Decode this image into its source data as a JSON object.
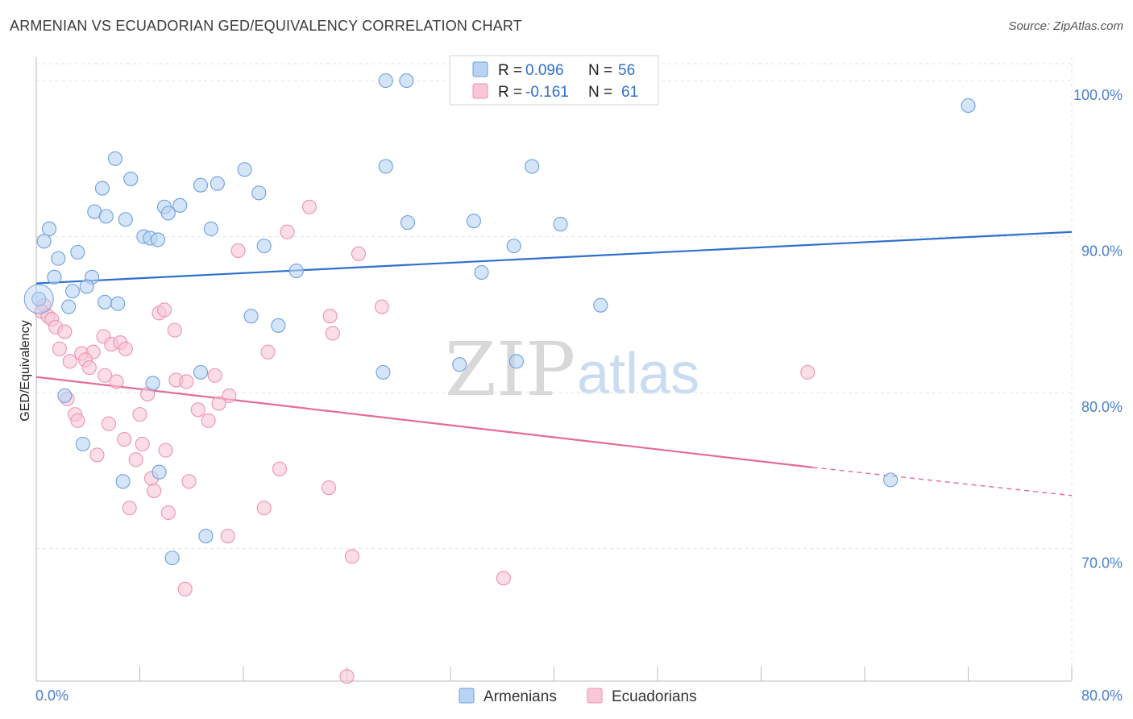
{
  "header": {
    "title": "ARMENIAN VS ECUADORIAN GED/EQUIVALENCY CORRELATION CHART",
    "source": "Source: ZipAtlas.com"
  },
  "watermark": {
    "zip": "ZIP",
    "atlas": "atlas"
  },
  "legend": {
    "armenians": {
      "r_label": "R =",
      "r_value": "0.096",
      "n_label": "N =",
      "n_value": "56"
    },
    "ecuadorians": {
      "r_label": "R =",
      "r_value": "-0.161",
      "n_label": "N =",
      "n_value": "61"
    }
  },
  "colors": {
    "armenians_fill": "#b9d3f3",
    "armenians_stroke": "#6d9fe0",
    "armenians_line": "#2f6fcf",
    "ecuadorians_fill": "#f9c6d6",
    "ecuadorians_stroke": "#ec93b0",
    "ecuadorians_line": "#e46b98",
    "grid": "#e3e3e3",
    "tick_label": "#4a7fd0"
  },
  "chart_data": {
    "type": "scatter",
    "title": "ARMENIAN VS ECUADORIAN GED/EQUIVALENCY CORRELATION CHART",
    "xlabel": "",
    "ylabel": "GED/Equivalency",
    "xlim": [
      0,
      80
    ],
    "ylim": [
      61.5,
      101.5
    ],
    "x_tick_labels": [
      "0.0%",
      "80.0%"
    ],
    "y_ticks": [
      {
        "value": 100,
        "label": "100.0%"
      },
      {
        "value": 90,
        "label": "90.0%"
      },
      {
        "value": 80,
        "label": "80.0%"
      },
      {
        "value": 70,
        "label": "70.0%"
      }
    ],
    "grid": true,
    "legend_position": "top-center",
    "series": [
      {
        "name": "Armenians",
        "r": 0.096,
        "n": 56,
        "trend": {
          "x1": 0,
          "y1": 87.0,
          "x2": 80,
          "y2": 90.3
        },
        "points": [
          [
            27.0,
            100.0
          ],
          [
            28.6,
            100.0
          ],
          [
            72.0,
            98.4
          ],
          [
            6.1,
            95.0
          ],
          [
            7.3,
            93.7
          ],
          [
            16.1,
            94.3
          ],
          [
            27.0,
            94.5
          ],
          [
            38.3,
            94.5
          ],
          [
            5.1,
            93.1
          ],
          [
            12.7,
            93.3
          ],
          [
            14.0,
            93.4
          ],
          [
            17.2,
            92.8
          ],
          [
            4.5,
            91.6
          ],
          [
            5.4,
            91.3
          ],
          [
            6.9,
            91.1
          ],
          [
            9.9,
            91.9
          ],
          [
            11.1,
            92.0
          ],
          [
            10.2,
            91.5
          ],
          [
            28.7,
            90.9
          ],
          [
            33.8,
            91.0
          ],
          [
            40.5,
            90.8
          ],
          [
            1.0,
            90.5
          ],
          [
            13.5,
            90.5
          ],
          [
            8.3,
            90.0
          ],
          [
            8.8,
            89.9
          ],
          [
            9.4,
            89.8
          ],
          [
            0.6,
            89.7
          ],
          [
            17.6,
            89.4
          ],
          [
            36.9,
            89.4
          ],
          [
            3.2,
            89.0
          ],
          [
            1.7,
            88.6
          ],
          [
            20.1,
            87.8
          ],
          [
            34.4,
            87.7
          ],
          [
            1.4,
            87.4
          ],
          [
            4.3,
            87.4
          ],
          [
            3.9,
            86.8
          ],
          [
            2.8,
            86.5
          ],
          [
            0.2,
            86.0
          ],
          [
            5.3,
            85.8
          ],
          [
            6.3,
            85.7
          ],
          [
            43.6,
            85.6
          ],
          [
            2.5,
            85.5
          ],
          [
            16.6,
            84.9
          ],
          [
            18.7,
            84.3
          ],
          [
            32.7,
            81.8
          ],
          [
            37.1,
            82.0
          ],
          [
            12.7,
            81.3
          ],
          [
            26.8,
            81.3
          ],
          [
            9.0,
            80.6
          ],
          [
            2.2,
            79.8
          ],
          [
            3.6,
            76.7
          ],
          [
            9.5,
            74.9
          ],
          [
            6.7,
            74.3
          ],
          [
            66.0,
            74.4
          ],
          [
            13.1,
            70.8
          ],
          [
            10.5,
            69.4
          ]
        ]
      },
      {
        "name": "Ecuadorians",
        "r": -0.161,
        "n": 61,
        "trend": {
          "x1": 0,
          "y1": 81.0,
          "x2": 60,
          "y2": 75.2
        },
        "trend_dashed": {
          "x1": 60,
          "y1": 75.2,
          "x2": 80,
          "y2": 73.4
        },
        "points": [
          [
            21.1,
            91.9
          ],
          [
            19.4,
            90.3
          ],
          [
            15.6,
            89.1
          ],
          [
            24.9,
            88.9
          ],
          [
            0.6,
            85.6
          ],
          [
            0.4,
            85.2
          ],
          [
            0.9,
            84.9
          ],
          [
            1.2,
            84.7
          ],
          [
            9.5,
            85.1
          ],
          [
            9.9,
            85.3
          ],
          [
            26.7,
            85.5
          ],
          [
            22.7,
            84.9
          ],
          [
            1.5,
            84.2
          ],
          [
            2.2,
            83.9
          ],
          [
            10.7,
            84.0
          ],
          [
            22.9,
            83.8
          ],
          [
            5.2,
            83.6
          ],
          [
            5.8,
            83.1
          ],
          [
            6.5,
            83.2
          ],
          [
            1.8,
            82.8
          ],
          [
            3.5,
            82.5
          ],
          [
            4.4,
            82.6
          ],
          [
            6.9,
            82.8
          ],
          [
            17.9,
            82.6
          ],
          [
            2.6,
            82.0
          ],
          [
            3.8,
            82.1
          ],
          [
            4.1,
            81.6
          ],
          [
            5.3,
            81.1
          ],
          [
            6.2,
            80.7
          ],
          [
            10.8,
            80.8
          ],
          [
            11.6,
            80.7
          ],
          [
            13.8,
            81.1
          ],
          [
            59.6,
            81.3
          ],
          [
            8.6,
            79.9
          ],
          [
            14.9,
            79.8
          ],
          [
            2.4,
            79.6
          ],
          [
            14.1,
            79.3
          ],
          [
            12.5,
            78.9
          ],
          [
            3.0,
            78.6
          ],
          [
            8.0,
            78.6
          ],
          [
            3.2,
            78.2
          ],
          [
            13.3,
            78.2
          ],
          [
            5.6,
            78.0
          ],
          [
            6.8,
            77.0
          ],
          [
            8.2,
            76.7
          ],
          [
            10.0,
            76.3
          ],
          [
            4.7,
            76.0
          ],
          [
            7.7,
            75.7
          ],
          [
            18.8,
            75.1
          ],
          [
            8.9,
            74.5
          ],
          [
            11.8,
            74.3
          ],
          [
            9.1,
            73.7
          ],
          [
            22.6,
            73.9
          ],
          [
            7.2,
            72.6
          ],
          [
            10.2,
            72.3
          ],
          [
            17.6,
            72.6
          ],
          [
            14.8,
            70.8
          ],
          [
            24.4,
            69.5
          ],
          [
            36.1,
            68.1
          ],
          [
            11.5,
            67.4
          ],
          [
            24.0,
            61.8
          ]
        ]
      }
    ]
  }
}
